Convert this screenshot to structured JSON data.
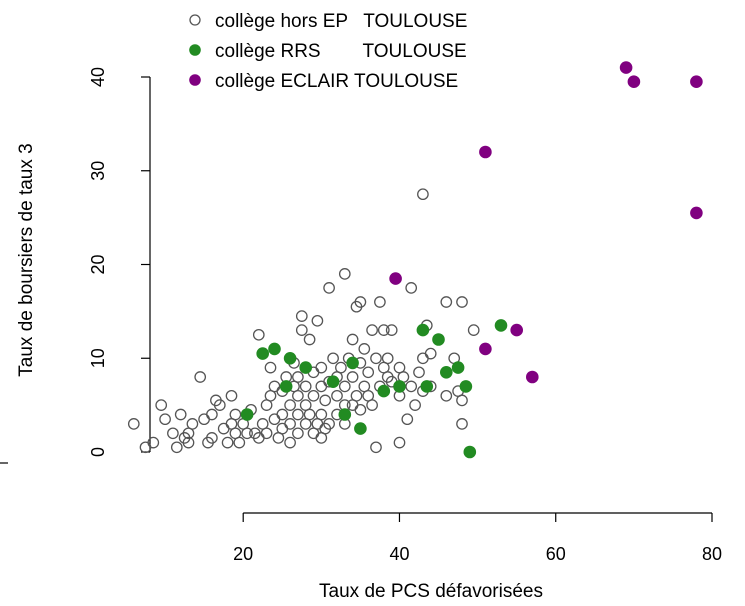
{
  "chart_data": {
    "type": "scatter",
    "xlabel": "Taux de PCS défavorisées",
    "ylabel": "Taux de boursiers de taux 3",
    "xlim": [
      5,
      80
    ],
    "ylim": [
      0,
      41
    ],
    "x_ticks": [
      20,
      40,
      60,
      80
    ],
    "y_ticks": [
      0,
      10,
      20,
      30,
      40
    ],
    "x_tick_labels": [
      "20",
      "40",
      "60",
      "80"
    ],
    "y_tick_labels": [
      "0",
      "10",
      "20",
      "30",
      "40"
    ],
    "grid": false,
    "legend_position": "top-left",
    "series": [
      {
        "name": "collège hors EP   TOULOUSE",
        "marker": "open-circle",
        "color": "#555555",
        "points": [
          [
            6,
            3
          ],
          [
            7.5,
            0.5
          ],
          [
            8.5,
            1
          ],
          [
            9.5,
            5
          ],
          [
            10,
            3.5
          ],
          [
            11,
            2
          ],
          [
            11.5,
            0.5
          ],
          [
            12,
            4
          ],
          [
            12.5,
            1.5
          ],
          [
            13,
            1
          ],
          [
            13,
            2
          ],
          [
            13.5,
            3
          ],
          [
            14.5,
            8
          ],
          [
            15,
            3.5
          ],
          [
            15.5,
            1
          ],
          [
            16,
            1.5
          ],
          [
            16,
            4
          ],
          [
            16.5,
            5.5
          ],
          [
            17,
            5
          ],
          [
            17.5,
            2.5
          ],
          [
            18,
            1
          ],
          [
            18.5,
            6
          ],
          [
            18.5,
            3
          ],
          [
            19,
            2
          ],
          [
            19,
            4
          ],
          [
            19.5,
            1
          ],
          [
            20,
            3
          ],
          [
            20.5,
            2
          ],
          [
            21,
            4.5
          ],
          [
            21.5,
            2
          ],
          [
            22,
            1.5
          ],
          [
            22,
            12.5
          ],
          [
            22.5,
            3
          ],
          [
            23,
            2
          ],
          [
            23,
            5
          ],
          [
            23.5,
            6
          ],
          [
            23.5,
            9
          ],
          [
            24,
            3.5
          ],
          [
            24,
            7
          ],
          [
            24.5,
            1.5
          ],
          [
            25,
            2.5
          ],
          [
            25,
            4
          ],
          [
            25,
            6.5
          ],
          [
            25.5,
            8
          ],
          [
            26,
            1
          ],
          [
            26,
            3
          ],
          [
            26,
            5
          ],
          [
            26.5,
            7
          ],
          [
            26.5,
            9.5
          ],
          [
            27,
            2
          ],
          [
            27,
            4
          ],
          [
            27,
            6
          ],
          [
            27,
            8
          ],
          [
            27.5,
            13
          ],
          [
            27.5,
            14.5
          ],
          [
            28,
            3
          ],
          [
            28,
            5
          ],
          [
            28,
            7
          ],
          [
            28.5,
            4
          ],
          [
            28.5,
            12
          ],
          [
            29,
            2
          ],
          [
            29,
            6
          ],
          [
            29,
            8.5
          ],
          [
            29.5,
            14
          ],
          [
            29.5,
            3
          ],
          [
            30,
            1.5
          ],
          [
            30,
            4
          ],
          [
            30,
            7
          ],
          [
            30,
            9
          ],
          [
            30.5,
            2.5
          ],
          [
            30.5,
            5.5
          ],
          [
            31,
            17.5
          ],
          [
            31,
            3
          ],
          [
            31,
            7.5
          ],
          [
            31.5,
            10
          ],
          [
            32,
            4
          ],
          [
            32,
            6
          ],
          [
            32,
            8
          ],
          [
            32.5,
            9
          ],
          [
            33,
            3
          ],
          [
            33,
            5
          ],
          [
            33,
            7
          ],
          [
            33,
            19
          ],
          [
            33.5,
            10
          ],
          [
            34,
            5
          ],
          [
            34,
            8
          ],
          [
            34,
            12
          ],
          [
            34.5,
            6
          ],
          [
            34.5,
            15.5
          ],
          [
            35,
            4.5
          ],
          [
            35,
            9.5
          ],
          [
            35,
            16
          ],
          [
            35.5,
            7
          ],
          [
            35.5,
            11
          ],
          [
            36,
            6
          ],
          [
            36,
            8.5
          ],
          [
            36.5,
            5
          ],
          [
            36.5,
            13
          ],
          [
            37,
            0.5
          ],
          [
            37,
            10
          ],
          [
            37.5,
            7
          ],
          [
            37.5,
            16
          ],
          [
            38,
            9
          ],
          [
            38,
            13
          ],
          [
            38.5,
            8
          ],
          [
            38.5,
            10
          ],
          [
            39,
            7.5
          ],
          [
            39,
            13
          ],
          [
            40,
            1
          ],
          [
            40,
            6
          ],
          [
            40,
            9
          ],
          [
            40.5,
            8
          ],
          [
            41,
            3.5
          ],
          [
            41.5,
            7
          ],
          [
            41.5,
            17.5
          ],
          [
            42,
            5
          ],
          [
            42.5,
            8.5
          ],
          [
            43,
            6.5
          ],
          [
            43,
            10
          ],
          [
            43,
            27.5
          ],
          [
            43.5,
            13.5
          ],
          [
            44,
            7
          ],
          [
            44,
            10.5
          ],
          [
            45,
            12
          ],
          [
            46,
            16
          ],
          [
            46,
            6
          ],
          [
            47,
            10
          ],
          [
            47.5,
            6.5
          ],
          [
            48,
            16
          ],
          [
            48,
            5.5
          ],
          [
            48,
            3
          ],
          [
            49.5,
            13
          ]
        ]
      },
      {
        "name": "collège RRS        TOULOUSE",
        "marker": "filled-circle",
        "color": "#228B22",
        "points": [
          [
            20.5,
            4
          ],
          [
            22.5,
            10.5
          ],
          [
            24,
            11
          ],
          [
            25.5,
            7
          ],
          [
            26,
            10
          ],
          [
            28,
            9
          ],
          [
            31.5,
            7.5
          ],
          [
            33,
            4
          ],
          [
            34,
            9.5
          ],
          [
            35,
            2.5
          ],
          [
            38,
            6.5
          ],
          [
            40,
            7
          ],
          [
            43,
            13
          ],
          [
            43.5,
            7
          ],
          [
            45,
            12
          ],
          [
            46,
            8.5
          ],
          [
            47.5,
            9
          ],
          [
            48.5,
            7
          ],
          [
            49,
            0
          ],
          [
            53,
            13.5
          ]
        ]
      },
      {
        "name": "collège ECLAIR TOULOUSE",
        "marker": "filled-circle",
        "color": "#800080",
        "points": [
          [
            39.5,
            18.5
          ],
          [
            51,
            32
          ],
          [
            51,
            11
          ],
          [
            55,
            13
          ],
          [
            57,
            8
          ],
          [
            69,
            41
          ],
          [
            70,
            39.5
          ],
          [
            78,
            39.5
          ],
          [
            78,
            25.5
          ]
        ]
      }
    ]
  }
}
